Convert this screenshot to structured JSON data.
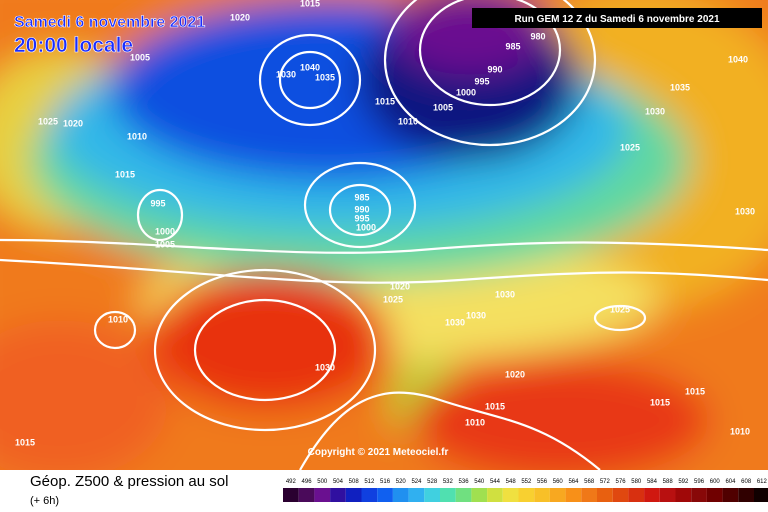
{
  "header": {
    "date": "Samedi 6 novembre 2021",
    "time": "20:00 locale",
    "run": "Run GEM 12 Z du Samedi 6 novembre 2021"
  },
  "copyright": "Copyright © 2021 Meteociel.fr",
  "legend": {
    "title": "Géop. Z500 & pression au sol",
    "lead": "(+ 6h)",
    "scale": [
      492,
      496,
      500,
      504,
      508,
      512,
      516,
      520,
      524,
      528,
      532,
      536,
      540,
      544,
      548,
      552,
      556,
      560,
      564,
      568,
      572,
      576,
      580,
      584,
      588,
      592,
      596,
      600,
      604,
      608,
      612
    ]
  },
  "isobar_labels": [
    1015,
    1020,
    1005,
    1040,
    1030,
    1035,
    1015,
    1005,
    1010,
    985,
    980,
    990,
    995,
    1000,
    1040,
    1035,
    1030,
    1025,
    1020,
    1010,
    1015,
    1025,
    995,
    1000,
    1005,
    985,
    990,
    995,
    1000,
    1030,
    1020,
    1025,
    1030,
    1010,
    1030,
    1030,
    1025,
    1030,
    1020,
    1015,
    1015,
    1015,
    1010,
    1010,
    1015
  ]
}
